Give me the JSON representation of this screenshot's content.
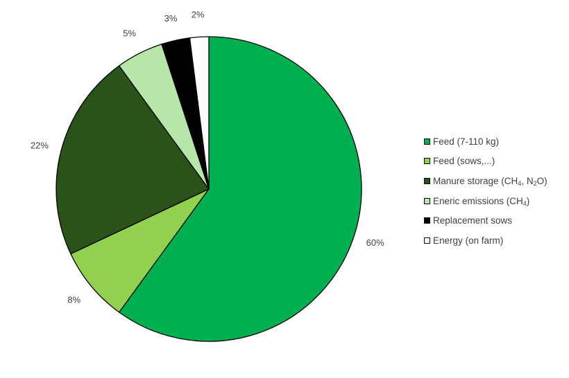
{
  "chart_data": {
    "type": "pie",
    "title": "",
    "series": [
      {
        "label_parts": [
          "Feed (7-110 kg)"
        ],
        "value": 60,
        "label": "60%",
        "color": "#00b050"
      },
      {
        "label_parts": [
          "Feed (sows,...)"
        ],
        "value": 8,
        "label": "8%",
        "color": "#92d050"
      },
      {
        "label_parts": [
          "Manure storage (CH",
          "4",
          ", N",
          "2",
          "O)"
        ],
        "value": 22,
        "label": "22%",
        "color": "#2a5219"
      },
      {
        "label_parts": [
          "Eneric emissions (CH",
          "4",
          ")"
        ],
        "value": 5,
        "label": "5%",
        "color": "#b6e6a8"
      },
      {
        "label_parts": [
          "Replacement sows"
        ],
        "value": 3,
        "label": "3%",
        "color": "#000000"
      },
      {
        "label_parts": [
          "Energy (on farm)"
        ],
        "value": 2,
        "label": "2%",
        "color": "#ffffff"
      }
    ],
    "legend_position": "right"
  }
}
